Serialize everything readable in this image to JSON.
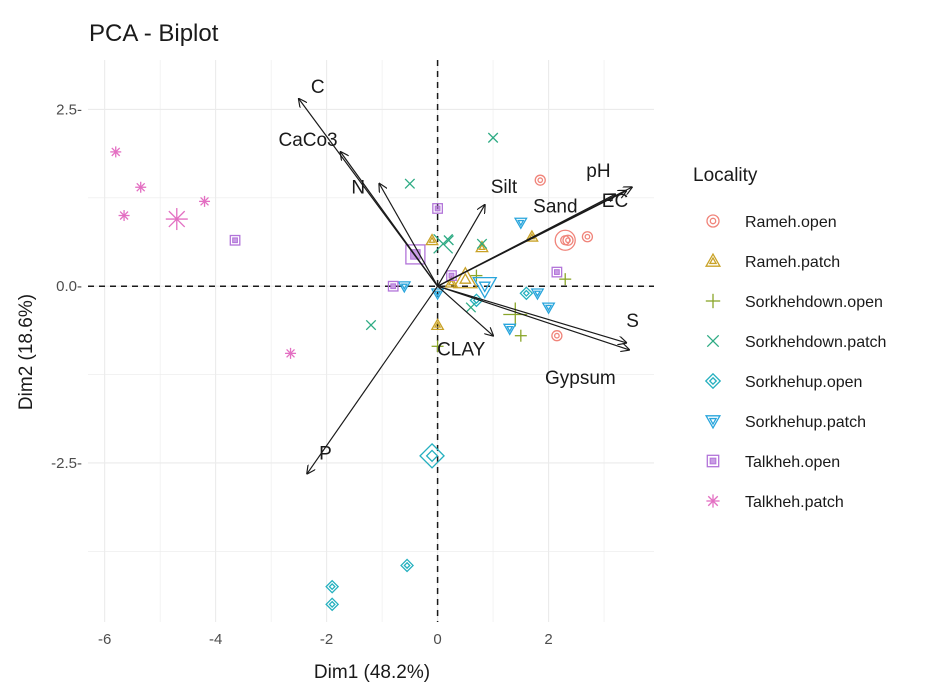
{
  "chart_data": {
    "type": "scatter",
    "title": "PCA - Biplot",
    "xlabel": "Dim1 (48.2%)",
    "ylabel": "Dim2 (18.6%)",
    "xlim": [
      -6.3,
      3.9
    ],
    "ylim": [
      -4.75,
      3.2
    ],
    "x_ticks": [
      -6,
      -4,
      -2,
      0,
      2
    ],
    "y_ticks": [
      2.5,
      0.0,
      -2.5
    ],
    "x_tick_labels": [
      "-6",
      "-4",
      "-2",
      "0",
      "2"
    ],
    "y_tick_labels": [
      "2.5-",
      "0.0-",
      "-2.5-"
    ],
    "grid": true,
    "legend_position": "right",
    "legend_title": "Locality",
    "series": [
      {
        "name": "Rameh.open",
        "color": "#f0847a",
        "shape": "circle",
        "points": [
          [
            1.85,
            1.5
          ],
          [
            2.35,
            0.65
          ],
          [
            2.15,
            -0.7
          ],
          [
            2.7,
            0.7
          ]
        ],
        "centroid": [
          2.3,
          0.65
        ]
      },
      {
        "name": "Rameh.patch",
        "color": "#c9a227",
        "shape": "triangle",
        "points": [
          [
            -0.1,
            0.65
          ],
          [
            0.8,
            0.55
          ],
          [
            0.0,
            -0.55
          ],
          [
            1.7,
            0.7
          ],
          [
            0.25,
            0.05
          ]
        ],
        "centroid": [
          0.5,
          0.1
        ]
      },
      {
        "name": "Sorkhehdown.open",
        "color": "#8aa62a",
        "shape": "plus",
        "points": [
          [
            0.0,
            -0.85
          ],
          [
            2.3,
            0.1
          ],
          [
            1.5,
            -0.7
          ],
          [
            0.7,
            0.15
          ]
        ],
        "centroid": [
          1.4,
          -0.4
        ]
      },
      {
        "name": "Sorkhehdown.patch",
        "color": "#2eab84",
        "shape": "cross",
        "points": [
          [
            1.0,
            2.1
          ],
          [
            -0.5,
            1.45
          ],
          [
            -1.2,
            -0.55
          ],
          [
            0.2,
            0.65
          ],
          [
            0.8,
            0.6
          ],
          [
            0.6,
            -0.3
          ]
        ],
        "centroid": [
          0.1,
          0.6
        ]
      },
      {
        "name": "Sorkhehup.open",
        "color": "#25b0bf",
        "shape": "diamond",
        "points": [
          [
            -0.55,
            -3.95
          ],
          [
            -1.9,
            -4.25
          ],
          [
            -1.9,
            -4.5
          ],
          [
            0.7,
            -0.2
          ],
          [
            1.6,
            -0.1
          ]
        ],
        "centroid": [
          -0.1,
          -2.4
        ]
      },
      {
        "name": "Sorkhehup.patch",
        "color": "#28a5dc",
        "shape": "triangle-down",
        "points": [
          [
            1.5,
            0.9
          ],
          [
            -0.6,
            0.0
          ],
          [
            1.3,
            -0.6
          ],
          [
            2.0,
            -0.3
          ],
          [
            1.8,
            -0.1
          ],
          [
            0.0,
            -0.1
          ]
        ],
        "centroid": [
          0.85,
          0.0
        ]
      },
      {
        "name": "Talkheh.open",
        "color": "#b274d9",
        "shape": "square",
        "points": [
          [
            -3.65,
            0.65
          ],
          [
            -0.8,
            0.0
          ],
          [
            0.0,
            1.1
          ],
          [
            2.15,
            0.2
          ],
          [
            0.25,
            0.15
          ]
        ],
        "centroid": [
          -0.4,
          0.45
        ]
      },
      {
        "name": "Talkheh.patch",
        "color": "#e36fc2",
        "shape": "star",
        "points": [
          [
            -5.8,
            1.9
          ],
          [
            -5.35,
            1.4
          ],
          [
            -5.65,
            1.0
          ],
          [
            -4.2,
            1.2
          ],
          [
            -2.65,
            -0.95
          ]
        ],
        "centroid": [
          -4.7,
          0.95
        ]
      }
    ],
    "variables": [
      {
        "name": "C",
        "x": -2.5,
        "y": 2.65
      },
      {
        "name": "CaCo3",
        "x": -1.75,
        "y": 1.9
      },
      {
        "name": "N",
        "x": -1.05,
        "y": 1.45
      },
      {
        "name": "Silt",
        "x": 0.85,
        "y": 1.15
      },
      {
        "name": "pH",
        "x": 3.4,
        "y": 1.35
      },
      {
        "name": "Sand",
        "x": 3.2,
        "y": 1.3
      },
      {
        "name": "EC",
        "x": 3.5,
        "y": 1.4
      },
      {
        "name": "S",
        "x": 3.4,
        "y": -0.8
      },
      {
        "name": "Gypsum",
        "x": 3.45,
        "y": -0.9
      },
      {
        "name": "CLAY",
        "x": 1.0,
        "y": -0.7
      },
      {
        "name": "P",
        "x": -2.35,
        "y": -2.65
      }
    ]
  }
}
